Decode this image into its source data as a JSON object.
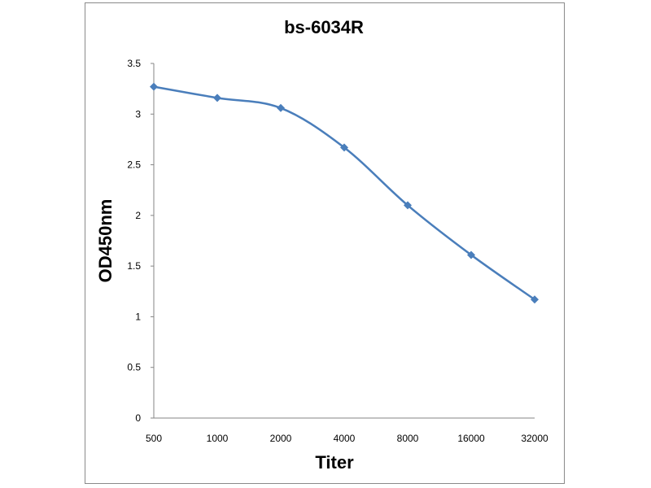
{
  "chart_data": {
    "type": "line",
    "title": "bs-6034R",
    "xlabel": "Titer",
    "ylabel": "OD450nm",
    "categories": [
      "500",
      "1000",
      "2000",
      "4000",
      "8000",
      "16000",
      "32000"
    ],
    "series": [
      {
        "values": [
          3.27,
          3.16,
          3.06,
          2.67,
          2.1,
          1.61,
          1.17
        ]
      }
    ],
    "ylim": [
      0,
      3.5
    ],
    "yticks": [
      "0",
      "0.5",
      "1",
      "1.5",
      "2",
      "2.5",
      "3",
      "3.5"
    ],
    "grid": false,
    "legend": "none",
    "colors": {
      "series": "#4a7ebb",
      "axis": "#868686",
      "frame": "#8a8a8a"
    },
    "marker": "diamond",
    "smooth": true
  }
}
